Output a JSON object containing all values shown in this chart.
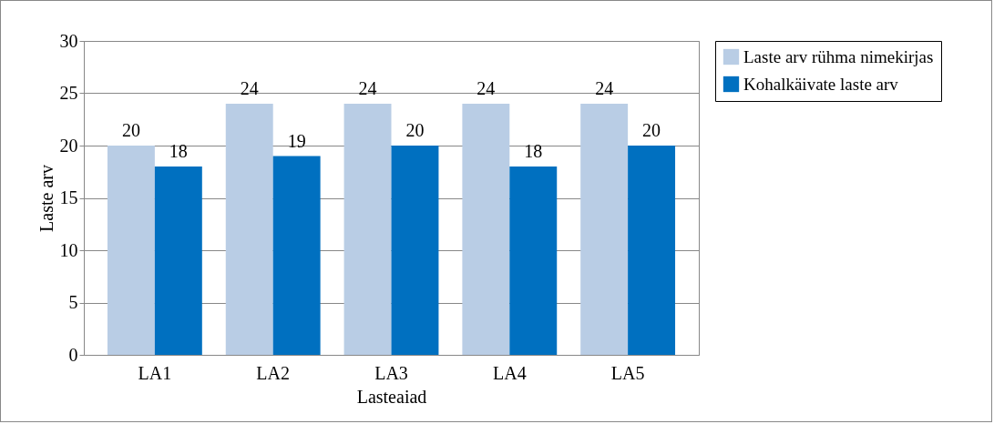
{
  "chart_data": {
    "type": "bar",
    "xlabel": "Lasteaiad",
    "ylabel": "Laste arv",
    "categories": [
      "LA1",
      "LA2",
      "LA3",
      "LA4",
      "LA5"
    ],
    "series": [
      {
        "name": "Laste arv rühma nimekirjas",
        "color": "#b9cde5",
        "values": [
          20,
          24,
          24,
          24,
          24
        ]
      },
      {
        "name": "Kohalkäivate laste arv",
        "color": "#0070c0",
        "values": [
          18,
          19,
          20,
          18,
          20
        ]
      }
    ],
    "ylim": [
      0,
      30
    ],
    "yticks": [
      0,
      5,
      10,
      15,
      20,
      25,
      30
    ],
    "grid": "y",
    "legend": "right",
    "data_labels": true
  }
}
